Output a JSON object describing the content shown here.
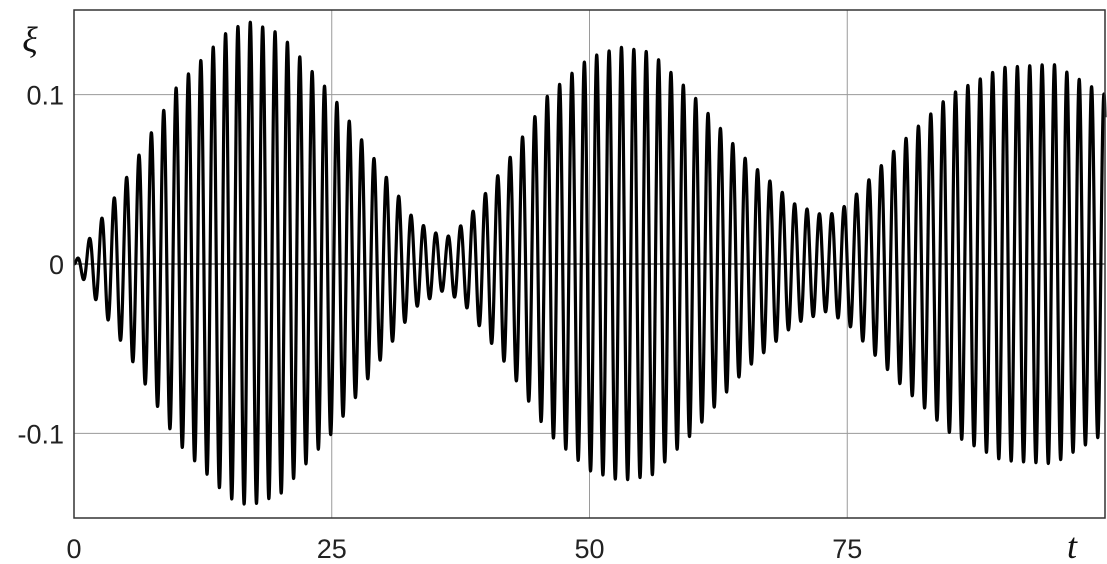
{
  "chart_data": {
    "type": "line",
    "title": "",
    "xlabel": "t",
    "ylabel": "ξ",
    "xlim": [
      0,
      100
    ],
    "ylim": [
      -0.15,
      0.15
    ],
    "grid": true,
    "legend": "none",
    "x_ticks": [
      {
        "value": 0,
        "label": "0"
      },
      {
        "value": 25,
        "label": "25"
      },
      {
        "value": 50,
        "label": "50"
      },
      {
        "value": 75,
        "label": "75"
      }
    ],
    "y_ticks": [
      {
        "value": 0.1,
        "label": "0.1"
      },
      {
        "value": 0,
        "label": "0"
      },
      {
        "value": -0.1,
        "label": "-0.1"
      }
    ],
    "series": [
      {
        "color": "#000000",
        "carrier_period": 1.2,
        "envelope": {
          "t": [
            0,
            5,
            10,
            15,
            17,
            20,
            25,
            30,
            33,
            36,
            38,
            42,
            46,
            50,
            53,
            56,
            60,
            65,
            70,
            73,
            75,
            80,
            85,
            90,
            95,
            100
          ],
          "amplitude": [
            0.0,
            0.05,
            0.105,
            0.138,
            0.143,
            0.136,
            0.1,
            0.054,
            0.026,
            0.015,
            0.025,
            0.06,
            0.1,
            0.122,
            0.128,
            0.125,
            0.1,
            0.063,
            0.035,
            0.028,
            0.035,
            0.07,
            0.1,
            0.116,
            0.118,
            0.1
          ]
        }
      }
    ]
  }
}
